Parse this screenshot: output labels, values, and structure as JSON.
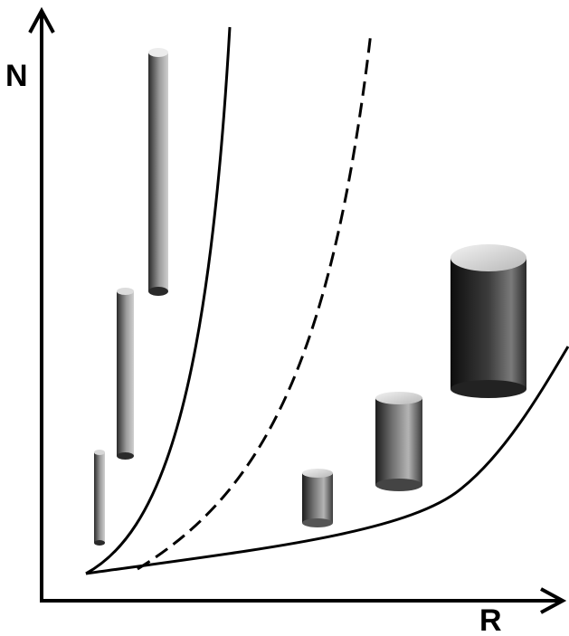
{
  "axes": {
    "y_label": "N",
    "x_label": "R"
  },
  "colors": {
    "stroke": "#000000",
    "background": "#ffffff",
    "cylinder_dark": "#1a1a1a",
    "cylinder_mid": "#8a8a8a",
    "cylinder_light": "#e6e6e6"
  }
}
